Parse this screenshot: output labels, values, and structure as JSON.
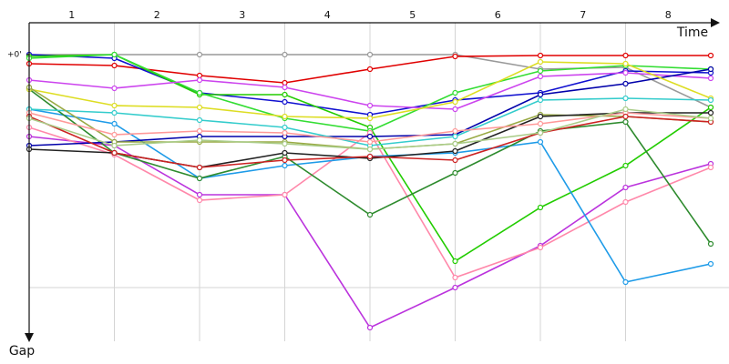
{
  "chart_data": {
    "type": "line",
    "x_label": "Time",
    "y_label": "Gap",
    "categories": [
      "1",
      "2",
      "3",
      "4",
      "5",
      "6",
      "7",
      "8"
    ],
    "x": [
      0,
      1,
      2,
      3,
      4,
      5,
      6,
      7,
      8
    ],
    "xlim": [
      0,
      8
    ],
    "ylim": [
      -3.5,
      31.5
    ],
    "yticks": [
      {
        "value": 0,
        "label": "+0'"
      }
    ],
    "grid": true,
    "series": [
      {
        "color": "#999999",
        "values": [
          0,
          0,
          0,
          0,
          0,
          0,
          1.6,
          1.4,
          5.8
        ]
      },
      {
        "color": "#e00000",
        "values": [
          1.0,
          1.2,
          2.3,
          3.1,
          1.6,
          0.2,
          0.1,
          0.1,
          0.1
        ]
      },
      {
        "color": "#1010d0",
        "values": [
          0,
          0.4,
          4.2,
          5.2,
          6.6,
          5.0,
          4.2,
          1.8,
          2.0
        ]
      },
      {
        "color": "#22cc00",
        "values": [
          0.2,
          0,
          4.4,
          4.4,
          8,
          22.7,
          16.8,
          12.2,
          5.8
        ]
      },
      {
        "color": "#33dd33",
        "values": [
          0.4,
          0,
          4.2,
          7,
          8.4,
          4.2,
          1.8,
          1.2,
          1.6
        ]
      },
      {
        "color": "#cc44ee",
        "values": [
          2.8,
          3.7,
          2.8,
          3.6,
          5.6,
          6.0,
          2.4,
          2.0,
          2.6
        ]
      },
      {
        "color": "#bb33dd",
        "values": [
          9,
          10,
          15.4,
          15.4,
          30,
          25.6,
          21,
          14.6,
          12
        ]
      },
      {
        "color": "#ff88aa",
        "values": [
          8,
          11,
          16,
          15.4,
          8.6,
          24.5,
          21.2,
          16.2,
          12.4
        ]
      },
      {
        "color": "#1e9be8",
        "values": [
          6,
          7.6,
          13.6,
          12.2,
          11.2,
          10.8,
          9.6,
          25,
          23
        ]
      },
      {
        "color": "#2e8b2e",
        "values": [
          3.8,
          10.8,
          13.6,
          11.2,
          17.6,
          13,
          8.4,
          7.4,
          20.8
        ]
      },
      {
        "color": "#0000aa",
        "values": [
          10,
          9.6,
          9,
          9,
          9,
          8.8,
          4.4,
          3.2,
          1.6
        ]
      },
      {
        "color": "#dddd22",
        "values": [
          3.8,
          5.6,
          5.8,
          6.8,
          7,
          5.2,
          0.8,
          1.0,
          4.8
        ]
      },
      {
        "color": "#33cccc",
        "values": [
          6,
          6.4,
          7.2,
          8,
          10,
          9,
          5,
          4.8,
          5
        ]
      },
      {
        "color": "#99aa44",
        "values": [
          3.6,
          9.6,
          9.6,
          9.6,
          10.4,
          9.8,
          6.6,
          6.8,
          7.4
        ]
      },
      {
        "color": "#222222",
        "values": [
          10.4,
          10.8,
          12.4,
          10.8,
          11.4,
          10.6,
          6.8,
          6.4,
          6.4
        ]
      },
      {
        "color": "#ff9999",
        "values": [
          6.4,
          8.8,
          8.4,
          8.6,
          9.6,
          8.4,
          7.6,
          6.4,
          7
        ]
      },
      {
        "color": "#cc2222",
        "values": [
          6.8,
          10.8,
          12.4,
          11.6,
          11.2,
          11.6,
          8.6,
          6.8,
          7.4
        ]
      },
      {
        "color": "#aacc88",
        "values": [
          7,
          10,
          9.4,
          9.8,
          10.4,
          9.8,
          8.6,
          6,
          7
        ]
      }
    ]
  }
}
